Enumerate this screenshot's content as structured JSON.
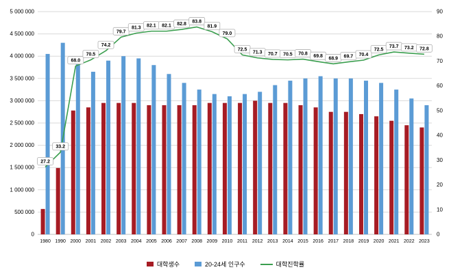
{
  "chart_data": {
    "type": "bar",
    "subtype": "combo-bar-line",
    "title": "",
    "categories": [
      "1980",
      "1990",
      "2000",
      "2001",
      "2002",
      "2003",
      "2004",
      "2005",
      "2006",
      "2007",
      "2008",
      "2009",
      "2010",
      "2011",
      "2012",
      "2013",
      "2014",
      "2015",
      "2016",
      "2017",
      "2018",
      "2019",
      "2020",
      "2021",
      "2022",
      "2023"
    ],
    "series": [
      {
        "name": "대학생수",
        "type": "bar",
        "axis": "left",
        "color": "#a61c24",
        "values": [
          570000,
          1490000,
          2780000,
          2850000,
          2950000,
          2950000,
          2950000,
          2900000,
          2900000,
          2900000,
          2900000,
          2950000,
          2950000,
          2950000,
          3000000,
          2950000,
          2950000,
          2900000,
          2850000,
          2750000,
          2750000,
          2700000,
          2650000,
          2550000,
          2450000,
          2400000
        ]
      },
      {
        "name": "20-24세 인구수",
        "type": "bar",
        "axis": "left",
        "color": "#5b9bd5",
        "values": [
          4050000,
          4300000,
          3850000,
          3650000,
          3900000,
          4000000,
          3950000,
          3800000,
          3600000,
          3400000,
          3250000,
          3150000,
          3100000,
          3150000,
          3200000,
          3350000,
          3450000,
          3500000,
          3550000,
          3500000,
          3500000,
          3450000,
          3400000,
          3250000,
          3050000,
          2900000
        ]
      },
      {
        "name": "대학진학률",
        "type": "line",
        "axis": "right",
        "color": "#3a9e4e",
        "values": [
          27.2,
          33.2,
          68.0,
          70.5,
          74.2,
          79.7,
          81.3,
          82.1,
          82.1,
          82.8,
          83.8,
          81.9,
          79.0,
          72.5,
          71.3,
          70.7,
          70.5,
          70.8,
          69.8,
          68.9,
          69.7,
          70.4,
          72.5,
          73.7,
          73.2,
          72.8
        ],
        "labels": [
          "27.2",
          "33.2",
          "68.0",
          "70.5",
          "74.2",
          "79.7",
          "81.3",
          "82.1",
          "82.1",
          "82.8",
          "83.8",
          "81.9",
          "79.0",
          "72.5",
          "71.3",
          "70.7",
          "70.5",
          "70.8",
          "69.8",
          "68.9",
          "69.7",
          "70.4",
          "72.5",
          "73.7",
          "73.2",
          "72.8"
        ]
      }
    ],
    "left_axis": {
      "min": 0,
      "max": 5000000,
      "step": 500000,
      "tick_labels": [
        "0",
        "500 000",
        "1 000 000",
        "1 500 000",
        "2 000 000",
        "2 500 000",
        "3 000 000",
        "3 500 000",
        "4 000 000",
        "4 500 000",
        "5 000 000"
      ]
    },
    "right_axis": {
      "min": 0,
      "max": 90,
      "step": 10,
      "tick_labels": [
        "0",
        "10",
        "20",
        "30",
        "40",
        "50",
        "60",
        "70",
        "80",
        "90"
      ]
    },
    "grid": true,
    "grid_color": "#d9d9d9",
    "axis_line_color": "#bfbfbf",
    "label_box": {
      "fill": "#ffffff",
      "border": "#b0b0b0",
      "text_color": "#000000"
    },
    "legend_position": "bottom",
    "xlabel": "",
    "ylabel_left": "",
    "ylabel_right": ""
  },
  "legend": {
    "items": [
      {
        "label": "대학생수"
      },
      {
        "label": "20-24세 인구수"
      },
      {
        "label": "대학진학률"
      }
    ]
  }
}
